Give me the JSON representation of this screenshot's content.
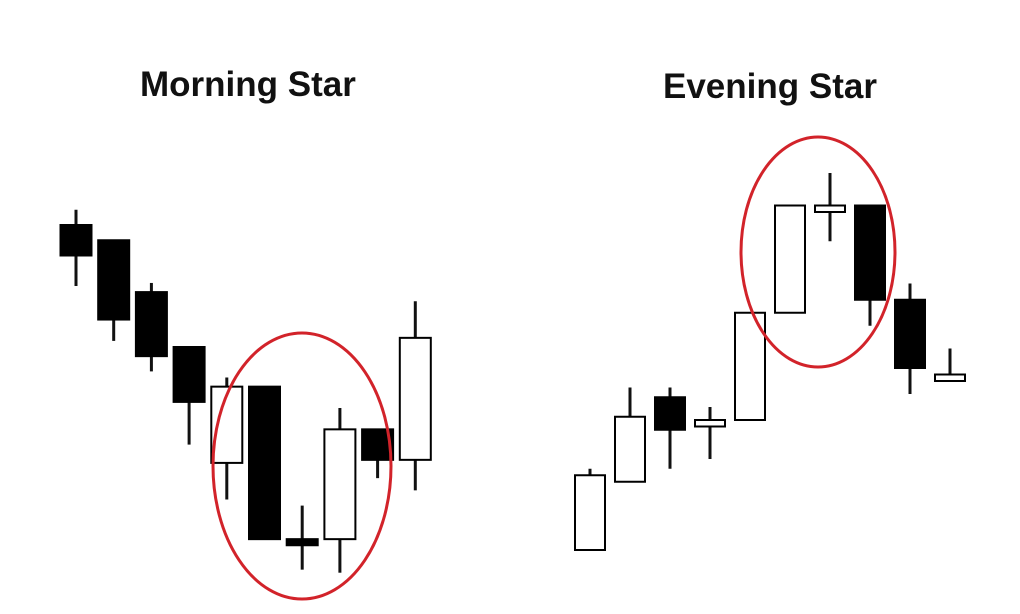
{
  "morning_star": {
    "title": "Morning Star",
    "highlight_color": "#d2232a",
    "chart_data": {
      "type": "candlestick",
      "highlighted_candles": [
        5,
        6,
        7
      ],
      "candles": [
        {
          "open": 100,
          "high": 105,
          "low": 80,
          "close": 90,
          "color": "black"
        },
        {
          "open": 95,
          "high": 95,
          "low": 62,
          "close": 69,
          "color": "black"
        },
        {
          "open": 78,
          "high": 81,
          "low": 52,
          "close": 57,
          "color": "black"
        },
        {
          "open": 60,
          "high": 60,
          "low": 28,
          "close": 42,
          "color": "black"
        },
        {
          "open": 22,
          "high": 50,
          "low": 10,
          "close": 47,
          "color": "white"
        },
        {
          "open": 47,
          "high": 47,
          "low": -3,
          "close": -3,
          "color": "black"
        },
        {
          "open": -3,
          "high": 8,
          "low": -13,
          "close": -5,
          "color": "black"
        },
        {
          "open": -3,
          "high": 40,
          "low": -14,
          "close": 33,
          "color": "white"
        },
        {
          "open": 33,
          "high": 33,
          "low": 17,
          "close": 23,
          "color": "black"
        },
        {
          "open": 23,
          "high": 75,
          "low": 13,
          "close": 63,
          "color": "white"
        }
      ]
    }
  },
  "evening_star": {
    "title": "Evening Star",
    "highlight_color": "#d2232a",
    "chart_data": {
      "type": "candlestick",
      "highlighted_candles": [
        5,
        6,
        7
      ],
      "candles": [
        {
          "open": 0,
          "high": 25,
          "low": 0,
          "close": 23,
          "color": "white"
        },
        {
          "open": 21,
          "high": 50,
          "low": 21,
          "close": 41,
          "color": "white"
        },
        {
          "open": 47,
          "high": 50,
          "low": 25,
          "close": 37,
          "color": "black"
        },
        {
          "open": 38,
          "high": 44,
          "low": 28,
          "close": 40,
          "color": "white"
        },
        {
          "open": 40,
          "high": 73,
          "low": 40,
          "close": 73,
          "color": "white"
        },
        {
          "open": 73,
          "high": 106,
          "low": 73,
          "close": 106,
          "color": "white"
        },
        {
          "open": 104,
          "high": 116,
          "low": 95,
          "close": 106,
          "color": "white"
        },
        {
          "open": 106,
          "high": 106,
          "low": 69,
          "close": 77,
          "color": "black"
        },
        {
          "open": 77,
          "high": 82,
          "low": 48,
          "close": 56,
          "color": "black"
        },
        {
          "open": 52,
          "high": 62,
          "low": 52,
          "close": 54,
          "color": "white"
        }
      ]
    }
  }
}
